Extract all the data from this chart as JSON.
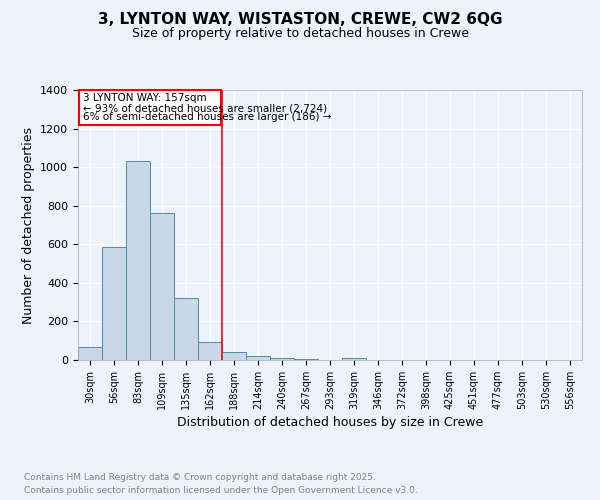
{
  "title_line1": "3, LYNTON WAY, WISTASTON, CREWE, CW2 6QG",
  "title_line2": "Size of property relative to detached houses in Crewe",
  "xlabel": "Distribution of detached houses by size in Crewe",
  "ylabel": "Number of detached properties",
  "categories": [
    "30sqm",
    "56sqm",
    "83sqm",
    "109sqm",
    "135sqm",
    "162sqm",
    "188sqm",
    "214sqm",
    "240sqm",
    "267sqm",
    "293sqm",
    "319sqm",
    "346sqm",
    "372sqm",
    "398sqm",
    "425sqm",
    "451sqm",
    "477sqm",
    "503sqm",
    "530sqm",
    "556sqm"
  ],
  "values": [
    65,
    585,
    1030,
    760,
    320,
    95,
    40,
    22,
    12,
    6,
    0,
    12,
    0,
    0,
    0,
    0,
    0,
    0,
    0,
    0,
    0
  ],
  "bar_color": "#c8d8e8",
  "bar_edge_color": "#5588aa",
  "vline_x": 5.5,
  "vline_color": "red",
  "ylim": [
    0,
    1400
  ],
  "yticks": [
    0,
    200,
    400,
    600,
    800,
    1000,
    1200,
    1400
  ],
  "annotation_title": "3 LYNTON WAY: 157sqm",
  "annotation_line1": "← 93% of detached houses are smaller (2,724)",
  "annotation_line2": "6% of semi-detached houses are larger (186) →",
  "annotation_box_color": "red",
  "footer_line1": "Contains HM Land Registry data © Crown copyright and database right 2025.",
  "footer_line2": "Contains public sector information licensed under the Open Government Licence v3.0.",
  "bg_color": "#eef2fb",
  "plot_bg_color": "#eef2fb",
  "grid_color": "#ffffff"
}
